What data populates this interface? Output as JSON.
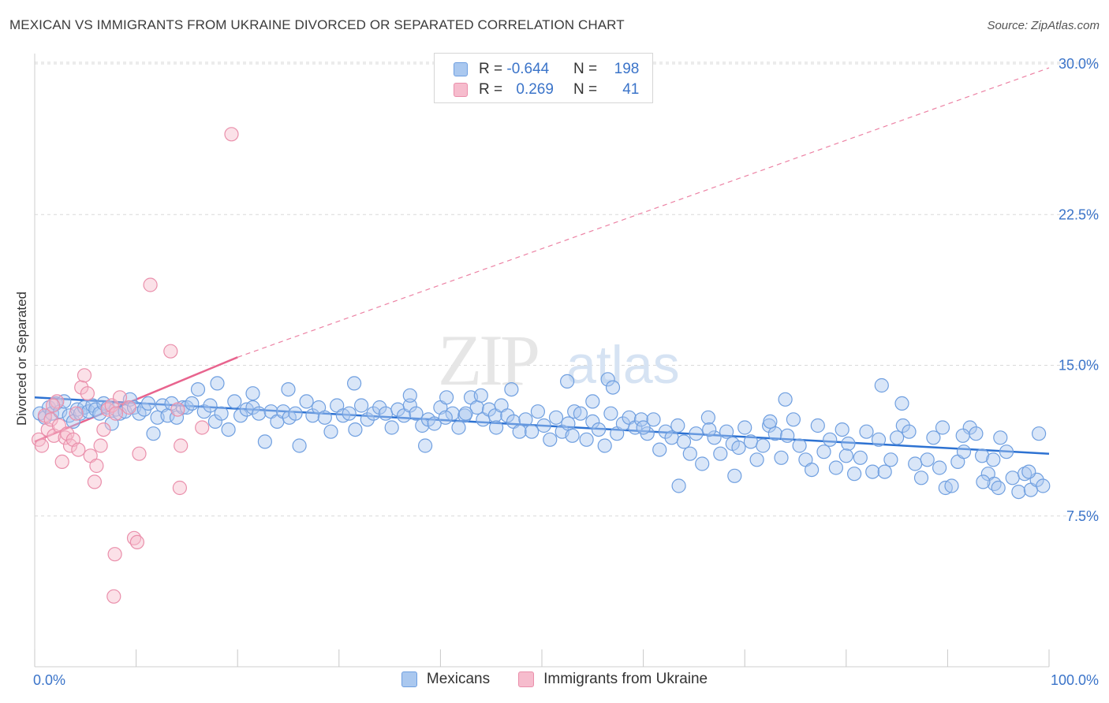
{
  "title": "MEXICAN VS IMMIGRANTS FROM UKRAINE DIVORCED OR SEPARATED CORRELATION CHART",
  "source": "Source: ZipAtlas.com",
  "watermark": {
    "zip": "ZIP",
    "atlas": "atlas"
  },
  "legend": {
    "rows": [
      {
        "r_label": "R = ",
        "r_value": "-0.644",
        "n_label": "N = ",
        "n_value": "198",
        "color": "#aac8ef",
        "stroke": "#6f9fe0"
      },
      {
        "r_label": "R = ",
        "r_value": "0.269",
        "n_label": "N = ",
        "n_value": "41",
        "color": "#f6bccd",
        "stroke": "#ea8fab"
      }
    ]
  },
  "bottom_legend": [
    {
      "label": "Mexicans",
      "color": "#aac8ef",
      "stroke": "#6f9fe0"
    },
    {
      "label": "Immigrants from Ukraine",
      "color": "#f6bccd",
      "stroke": "#ea8fab"
    }
  ],
  "colors": {
    "blue_line": "#2d72d2",
    "pink_line": "#e8648e",
    "blue_fill": "rgba(170,200,239,0.45)",
    "blue_stroke": "#6f9fe0",
    "pink_fill": "rgba(246,188,205,0.45)",
    "pink_stroke": "#ea8fab",
    "tick_label": "#3b74c9",
    "grid": "#d9d9d9"
  },
  "chart_data": {
    "type": "scatter",
    "title": "MEXICAN VS IMMIGRANTS FROM UKRAINE DIVORCED OR SEPARATED CORRELATION CHART",
    "xlabel": "",
    "ylabel": "Divorced or Separated",
    "xlim": [
      0,
      100
    ],
    "ylim": [
      0,
      31
    ],
    "x_ticks": [
      {
        "value": 0,
        "label": "0.0%"
      },
      {
        "value": 100,
        "label": "100.0%"
      }
    ],
    "y_ticks": [
      {
        "value": 7.5,
        "label": "7.5%"
      },
      {
        "value": 15,
        "label": "15.0%"
      },
      {
        "value": 22.5,
        "label": "22.5%"
      },
      {
        "value": 30,
        "label": "30.0%"
      }
    ],
    "grid": true,
    "legend_position": "top-center",
    "series": [
      {
        "name": "Mexicans",
        "r": -0.644,
        "n": 198,
        "trend": {
          "x": [
            0,
            100
          ],
          "y": [
            13.4,
            10.6
          ],
          "style": "solid"
        },
        "points": [
          [
            0.5,
            12.6
          ],
          [
            1.0,
            12.4
          ],
          [
            1.4,
            12.9
          ],
          [
            1.7,
            12.6
          ],
          [
            2.1,
            13.1
          ],
          [
            2.5,
            12.7
          ],
          [
            2.9,
            13.2
          ],
          [
            3.4,
            12.5
          ],
          [
            3.8,
            12.2
          ],
          [
            4.2,
            12.8
          ],
          [
            4.5,
            12.6
          ],
          [
            4.9,
            12.9
          ],
          [
            5.3,
            12.7
          ],
          [
            5.7,
            13.0
          ],
          [
            6.0,
            12.8
          ],
          [
            6.4,
            12.6
          ],
          [
            6.8,
            13.1
          ],
          [
            7.2,
            12.9
          ],
          [
            7.6,
            12.1
          ],
          [
            8.0,
            12.8
          ],
          [
            8.4,
            12.6
          ],
          [
            8.9,
            12.7
          ],
          [
            9.4,
            13.3
          ],
          [
            9.8,
            12.9
          ],
          [
            10.3,
            12.6
          ],
          [
            10.8,
            12.8
          ],
          [
            11.2,
            13.1
          ],
          [
            11.7,
            11.6
          ],
          [
            12.1,
            12.4
          ],
          [
            12.6,
            13.0
          ],
          [
            13.1,
            12.5
          ],
          [
            13.5,
            13.1
          ],
          [
            14.0,
            12.4
          ],
          [
            14.6,
            12.9
          ],
          [
            15.0,
            12.9
          ],
          [
            15.5,
            13.1
          ],
          [
            16.1,
            13.8
          ],
          [
            16.7,
            12.7
          ],
          [
            17.3,
            13.0
          ],
          [
            17.8,
            12.2
          ],
          [
            18.4,
            12.6
          ],
          [
            19.1,
            11.8
          ],
          [
            19.7,
            13.2
          ],
          [
            20.3,
            12.5
          ],
          [
            20.9,
            12.8
          ],
          [
            21.5,
            12.9
          ],
          [
            22.1,
            12.6
          ],
          [
            22.7,
            11.2
          ],
          [
            23.3,
            12.7
          ],
          [
            23.9,
            12.2
          ],
          [
            24.5,
            12.7
          ],
          [
            25.1,
            12.4
          ],
          [
            25.7,
            12.6
          ],
          [
            26.1,
            11.0
          ],
          [
            26.8,
            13.2
          ],
          [
            27.4,
            12.5
          ],
          [
            28.0,
            12.9
          ],
          [
            28.6,
            12.4
          ],
          [
            29.2,
            11.7
          ],
          [
            29.8,
            13.0
          ],
          [
            30.4,
            12.5
          ],
          [
            31.0,
            12.6
          ],
          [
            31.6,
            11.8
          ],
          [
            32.2,
            13.0
          ],
          [
            32.8,
            12.3
          ],
          [
            33.4,
            12.6
          ],
          [
            34.0,
            12.9
          ],
          [
            34.6,
            12.6
          ],
          [
            35.2,
            11.9
          ],
          [
            35.8,
            12.8
          ],
          [
            36.4,
            12.5
          ],
          [
            37.0,
            13.0
          ],
          [
            37.6,
            12.6
          ],
          [
            38.2,
            12.0
          ],
          [
            38.8,
            12.3
          ],
          [
            39.4,
            12.1
          ],
          [
            40.0,
            12.9
          ],
          [
            40.6,
            13.4
          ],
          [
            41.2,
            12.6
          ],
          [
            41.8,
            11.9
          ],
          [
            42.4,
            12.5
          ],
          [
            43.0,
            13.4
          ],
          [
            43.6,
            12.9
          ],
          [
            44.2,
            12.3
          ],
          [
            44.8,
            12.8
          ],
          [
            45.4,
            12.5
          ],
          [
            46.0,
            13.0
          ],
          [
            46.6,
            12.5
          ],
          [
            47.2,
            12.2
          ],
          [
            47.8,
            11.7
          ],
          [
            48.4,
            12.3
          ],
          [
            49.0,
            11.7
          ],
          [
            49.6,
            12.7
          ],
          [
            50.2,
            12.0
          ],
          [
            50.8,
            11.3
          ],
          [
            51.4,
            12.4
          ],
          [
            52.0,
            11.7
          ],
          [
            52.6,
            12.1
          ],
          [
            53.2,
            12.7
          ],
          [
            53.8,
            12.6
          ],
          [
            54.4,
            11.3
          ],
          [
            55.0,
            12.2
          ],
          [
            55.6,
            11.8
          ],
          [
            56.2,
            11.0
          ],
          [
            56.8,
            12.6
          ],
          [
            57.4,
            11.6
          ],
          [
            58.0,
            12.1
          ],
          [
            58.6,
            12.4
          ],
          [
            59.2,
            11.9
          ],
          [
            59.8,
            12.3
          ],
          [
            60.4,
            11.6
          ],
          [
            61.0,
            12.3
          ],
          [
            61.6,
            10.8
          ],
          [
            62.2,
            11.7
          ],
          [
            62.8,
            11.4
          ],
          [
            63.4,
            12.0
          ],
          [
            64.0,
            11.2
          ],
          [
            64.6,
            10.6
          ],
          [
            65.2,
            11.6
          ],
          [
            65.8,
            10.1
          ],
          [
            66.4,
            12.4
          ],
          [
            67.0,
            11.4
          ],
          [
            67.6,
            10.6
          ],
          [
            68.2,
            11.7
          ],
          [
            68.8,
            11.1
          ],
          [
            69.4,
            10.9
          ],
          [
            70.0,
            11.9
          ],
          [
            70.6,
            11.2
          ],
          [
            71.2,
            10.3
          ],
          [
            71.8,
            11.0
          ],
          [
            72.4,
            12.0
          ],
          [
            73.0,
            11.6
          ],
          [
            73.6,
            10.4
          ],
          [
            74.2,
            11.5
          ],
          [
            74.8,
            12.3
          ],
          [
            75.4,
            11.0
          ],
          [
            76.0,
            10.3
          ],
          [
            76.6,
            9.8
          ],
          [
            77.2,
            12.0
          ],
          [
            77.8,
            10.7
          ],
          [
            78.4,
            11.3
          ],
          [
            79.0,
            9.9
          ],
          [
            79.6,
            11.8
          ],
          [
            80.2,
            11.1
          ],
          [
            80.8,
            9.6
          ],
          [
            81.4,
            10.4
          ],
          [
            82.0,
            11.7
          ],
          [
            82.6,
            9.7
          ],
          [
            83.2,
            11.3
          ],
          [
            83.8,
            9.7
          ],
          [
            84.4,
            10.3
          ],
          [
            85.0,
            11.4
          ],
          [
            85.6,
            12.0
          ],
          [
            86.2,
            11.7
          ],
          [
            86.8,
            10.1
          ],
          [
            87.4,
            9.4
          ],
          [
            88.0,
            10.3
          ],
          [
            88.6,
            11.4
          ],
          [
            89.2,
            9.9
          ],
          [
            89.8,
            8.9
          ],
          [
            90.4,
            9.0
          ],
          [
            91.0,
            10.2
          ],
          [
            91.6,
            10.7
          ],
          [
            92.2,
            11.9
          ],
          [
            92.8,
            11.6
          ],
          [
            93.4,
            10.5
          ],
          [
            94.0,
            9.6
          ],
          [
            94.6,
            9.1
          ],
          [
            95.2,
            11.4
          ],
          [
            95.8,
            10.7
          ],
          [
            96.4,
            9.4
          ],
          [
            97.0,
            8.7
          ],
          [
            97.6,
            9.6
          ],
          [
            98.2,
            8.8
          ],
          [
            98.8,
            9.3
          ],
          [
            99.4,
            9.0
          ],
          [
            44.0,
            13.5
          ],
          [
            52.5,
            14.2
          ],
          [
            56.5,
            14.3
          ],
          [
            74.0,
            13.3
          ],
          [
            83.5,
            14.0
          ],
          [
            85.5,
            13.1
          ],
          [
            18.0,
            14.1
          ],
          [
            21.5,
            13.6
          ],
          [
            25.0,
            13.8
          ],
          [
            31.5,
            14.1
          ],
          [
            55.0,
            13.2
          ],
          [
            47.0,
            13.8
          ],
          [
            37.0,
            13.5
          ],
          [
            57.0,
            13.9
          ],
          [
            99.0,
            11.6
          ],
          [
            98.0,
            9.7
          ],
          [
            95.0,
            8.9
          ],
          [
            93.5,
            9.2
          ],
          [
            72.5,
            12.2
          ],
          [
            60.0,
            11.9
          ],
          [
            69.0,
            9.5
          ],
          [
            63.5,
            9.0
          ],
          [
            66.5,
            11.8
          ],
          [
            80.0,
            10.5
          ],
          [
            89.5,
            11.9
          ],
          [
            91.5,
            11.5
          ],
          [
            94.5,
            10.3
          ],
          [
            38.5,
            11.0
          ],
          [
            40.5,
            12.4
          ],
          [
            42.5,
            12.6
          ],
          [
            45.5,
            11.9
          ],
          [
            53.0,
            11.5
          ]
        ]
      },
      {
        "name": "Immigrants from Ukraine",
        "r": 0.269,
        "n": 41,
        "trend": {
          "x": [
            0,
            20
          ],
          "y": [
            11.2,
            15.4
          ],
          "style": "solid",
          "extended": {
            "x": [
              20,
              100
            ],
            "y": [
              15.4,
              29.8
            ],
            "style": "dashed"
          }
        },
        "points": [
          [
            0.4,
            11.3
          ],
          [
            0.7,
            11.0
          ],
          [
            1.0,
            12.5
          ],
          [
            1.3,
            11.8
          ],
          [
            1.6,
            12.3
          ],
          [
            1.9,
            11.5
          ],
          [
            2.2,
            13.2
          ],
          [
            2.4,
            12.0
          ],
          [
            2.7,
            10.2
          ],
          [
            3.0,
            11.4
          ],
          [
            3.2,
            11.6
          ],
          [
            3.5,
            11.0
          ],
          [
            3.8,
            11.3
          ],
          [
            4.1,
            12.6
          ],
          [
            4.3,
            10.8
          ],
          [
            4.6,
            13.9
          ],
          [
            4.9,
            14.5
          ],
          [
            5.2,
            13.6
          ],
          [
            5.5,
            10.5
          ],
          [
            5.9,
            9.2
          ],
          [
            6.1,
            10.0
          ],
          [
            6.5,
            11.0
          ],
          [
            6.8,
            11.8
          ],
          [
            7.2,
            12.8
          ],
          [
            7.6,
            13.0
          ],
          [
            8.0,
            12.6
          ],
          [
            8.4,
            13.4
          ],
          [
            9.3,
            12.9
          ],
          [
            10.3,
            10.6
          ],
          [
            11.4,
            19.0
          ],
          [
            13.4,
            15.7
          ],
          [
            14.1,
            12.8
          ],
          [
            14.3,
            8.9
          ],
          [
            14.4,
            11.0
          ],
          [
            16.5,
            11.9
          ],
          [
            19.4,
            26.5
          ],
          [
            9.8,
            6.4
          ],
          [
            10.1,
            6.2
          ],
          [
            7.9,
            5.6
          ],
          [
            7.8,
            3.5
          ],
          [
            1.8,
            13.0
          ]
        ]
      }
    ]
  }
}
